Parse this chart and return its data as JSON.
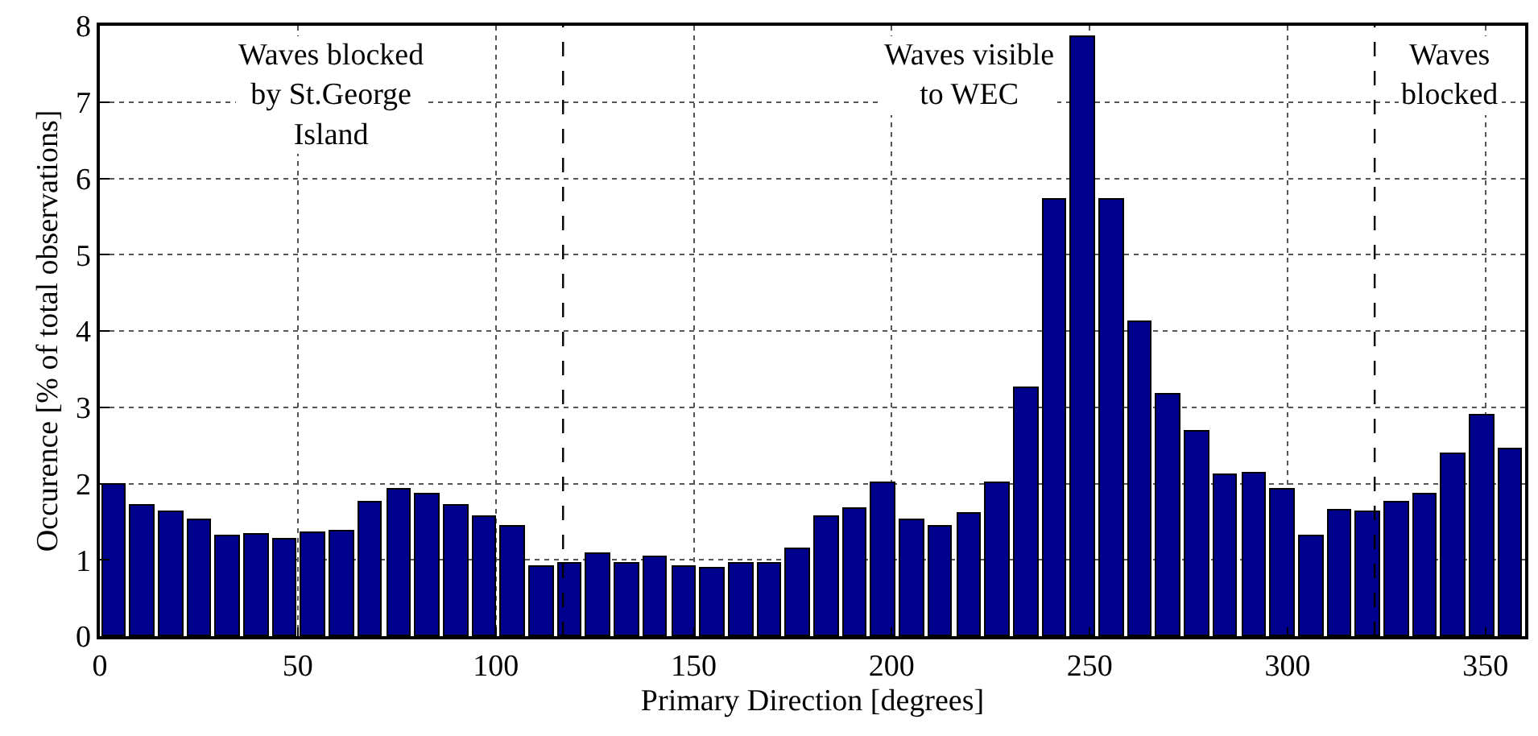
{
  "chart_data": {
    "type": "bar",
    "xlabel": "Primary Direction [degrees]",
    "ylabel": "Occurence [% of total observations]",
    "x": [
      3.6,
      10.8,
      18.0,
      25.2,
      32.4,
      39.6,
      46.8,
      54.0,
      61.2,
      68.4,
      75.6,
      82.8,
      90.0,
      97.2,
      104.4,
      111.6,
      118.8,
      126.0,
      133.2,
      140.4,
      147.6,
      154.8,
      162.0,
      169.2,
      176.4,
      183.6,
      190.8,
      198.0,
      205.2,
      212.4,
      219.6,
      226.8,
      234.0,
      241.2,
      248.4,
      255.6,
      262.8,
      270.0,
      277.2,
      284.4,
      291.6,
      298.8,
      306.0,
      313.2,
      320.4,
      327.6,
      334.8,
      342.0,
      349.2,
      356.4
    ],
    "values": [
      1.98,
      1.72,
      1.62,
      1.53,
      1.31,
      1.34,
      1.26,
      1.35,
      1.38,
      1.76,
      1.92,
      1.85,
      1.72,
      1.56,
      1.44,
      0.9,
      0.95,
      1.08,
      0.96,
      1.03,
      0.91,
      0.88,
      0.94,
      0.94,
      1.13,
      1.57,
      1.67,
      2.0,
      1.51,
      1.44,
      1.61,
      2.01,
      3.25,
      5.73,
      7.86,
      5.73,
      4.12,
      3.16,
      2.68,
      2.11,
      2.14,
      1.93,
      1.31,
      1.65,
      1.63,
      1.75,
      1.86,
      2.38,
      2.9,
      2.44
    ],
    "color": "#00008f",
    "xlim": [
      0,
      360
    ],
    "xticks": [
      0,
      50,
      100,
      150,
      200,
      250,
      300,
      350
    ],
    "ylim": [
      0,
      8
    ],
    "yticks": [
      0,
      1,
      2,
      3,
      4,
      5,
      6,
      7,
      8
    ],
    "grid": true,
    "ref_lines": [
      {
        "axis": "x",
        "value": 117,
        "color": "#000000",
        "line_style": "dashed"
      },
      {
        "axis": "x",
        "value": 322,
        "color": "#000000",
        "line_style": "dashed"
      }
    ],
    "annotations": [
      "Waves blocked\nby St.George\nIsland",
      "Waves visible\nto WEC",
      "Waves\nblocked"
    ]
  }
}
